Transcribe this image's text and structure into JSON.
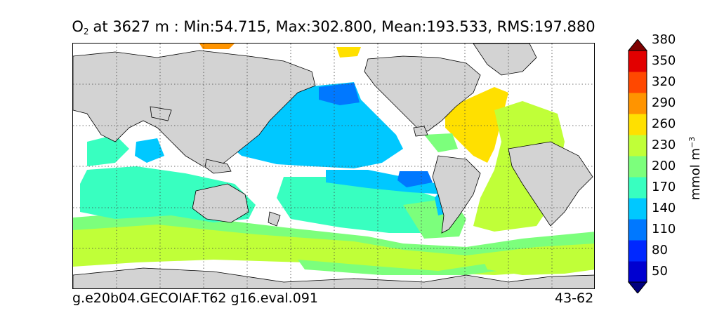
{
  "title": {
    "variable": "O",
    "subscript": "2",
    "text": "at 3627 m : Min:54.715, Max:302.800, Mean:193.533, RMS:197.880"
  },
  "footer": {
    "case_name": "g.e20b04.GECOIAF.T62 g16.eval.091",
    "years": "43-62"
  },
  "colorbar": {
    "units_base": "mmol m",
    "units_exponent": "−3",
    "labels": [
      "380",
      "350",
      "320",
      "290",
      "260",
      "230",
      "200",
      "170",
      "140",
      "110",
      "80",
      "50"
    ],
    "levels": [
      50,
      80,
      110,
      140,
      170,
      200,
      230,
      260,
      290,
      320,
      350,
      380
    ],
    "colors": [
      "#00007f",
      "#0000d0",
      "#0028ff",
      "#0078ff",
      "#00c8ff",
      "#38ffc0",
      "#7cff7c",
      "#c0ff38",
      "#ffe000",
      "#ff9400",
      "#ff4800",
      "#e20000",
      "#7f0000"
    ],
    "extend": "both"
  },
  "map": {
    "land_color": "#d3d3d3",
    "missing_color": "#ffffff",
    "gridlines": "dotted"
  }
}
